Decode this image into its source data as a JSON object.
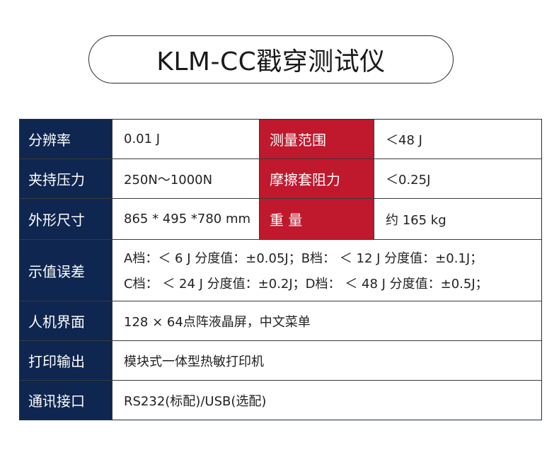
{
  "title": "KLM-CC戳穿测试仪",
  "rows": [
    {
      "label": "分辨率",
      "value": "0.01 J",
      "label2": "测量范围",
      "value2": "＜48 J"
    },
    {
      "label": "夹持压力",
      "value": "250N～1000N",
      "label2": "摩擦套阻力",
      "value2": "＜0.25J"
    },
    {
      "label": "外形尺寸",
      "value": "865 * 495 *780 mm",
      "label2": "重 量",
      "value2": "约 165 kg"
    },
    {
      "label": "示值误差",
      "line1": "A档：＜ 6 J 分度值：±0.05J；B档： ＜ 12 J 分度值：±0.1J；",
      "line2": "C档： ＜ 24 J 分度值：±0.2J；D档： ＜ 48 J 分度值：±0.5J；"
    },
    {
      "label": "人机界面",
      "value": "128 × 64点阵液晶屏，中文菜单"
    },
    {
      "label": "打印输出",
      "value": "模块式一体型热敏打印机"
    },
    {
      "label": "通讯接口",
      "value": "RS232(标配)/USB(选配)"
    }
  ]
}
